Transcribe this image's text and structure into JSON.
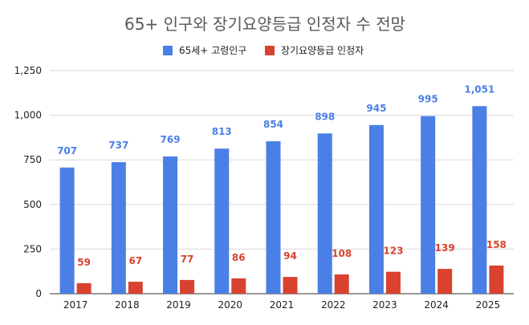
{
  "chart_data": {
    "type": "bar",
    "title": "65+ 인구와 장기요양등급 인정자 수 전망",
    "categories": [
      "2017",
      "2018",
      "2019",
      "2020",
      "2021",
      "2022",
      "2023",
      "2024",
      "2025"
    ],
    "series": [
      {
        "name": "65세+ 고령인구",
        "color": "#4a7fe6",
        "values": [
          707,
          737,
          769,
          813,
          854,
          898,
          945,
          995,
          1051
        ],
        "labels": [
          "707",
          "737",
          "769",
          "813",
          "854",
          "898",
          "945",
          "995",
          "1,051"
        ]
      },
      {
        "name": "장기요양등급 인정자",
        "color": "#d9422f",
        "values": [
          59,
          67,
          77,
          86,
          94,
          108,
          123,
          139,
          158
        ],
        "labels": [
          "59",
          "67",
          "77",
          "86",
          "94",
          "108",
          "123",
          "139",
          "158"
        ]
      }
    ],
    "xlabel": "",
    "ylabel": "",
    "ylim": [
      0,
      1250
    ],
    "yticks": [
      "0",
      "250",
      "500",
      "750",
      "1,000",
      "1,250"
    ],
    "ytick_values": [
      0,
      250,
      500,
      750,
      1000,
      1250
    ],
    "grid": true,
    "legend_position": "top-center"
  }
}
